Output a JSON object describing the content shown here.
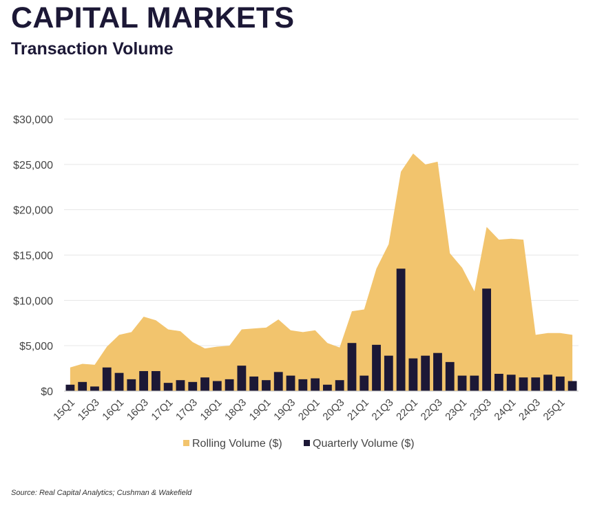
{
  "header": {
    "title": "CAPITAL MARKETS",
    "subtitle": "Transaction Volume"
  },
  "source": "Source: Real Capital Analytics; Cushman & Wakefield",
  "colors": {
    "rolling": "#f2c46d",
    "quarterly": "#1c1836",
    "grid": "#e6e6e6",
    "text": "#1c1836"
  },
  "chart_data": {
    "type": "bar+area",
    "title": "Transaction Volume",
    "xlabel": "",
    "ylabel": "",
    "ylim": [
      0,
      30000
    ],
    "yticks": [
      0,
      5000,
      10000,
      15000,
      20000,
      25000,
      30000
    ],
    "ytick_labels": [
      "$0",
      "$5,000",
      "$10,000",
      "$15,000",
      "$20,000",
      "$25,000",
      "$30,000"
    ],
    "categories": [
      "15Q1",
      "15Q2",
      "15Q3",
      "15Q4",
      "16Q1",
      "16Q2",
      "16Q3",
      "16Q4",
      "17Q1",
      "17Q2",
      "17Q3",
      "17Q4",
      "18Q1",
      "18Q2",
      "18Q3",
      "18Q4",
      "19Q1",
      "19Q2",
      "19Q3",
      "19Q4",
      "20Q1",
      "20Q2",
      "20Q3",
      "20Q4",
      "21Q1",
      "21Q2",
      "21Q3",
      "21Q4",
      "22Q1",
      "22Q2",
      "22Q3",
      "22Q4",
      "23Q1",
      "23Q2",
      "23Q3",
      "23Q4",
      "24Q1",
      "24Q2",
      "24Q3",
      "24Q4",
      "25Q1",
      "25Q2"
    ],
    "x_tick_labels": [
      "15Q1",
      "15Q3",
      "16Q1",
      "16Q3",
      "17Q1",
      "17Q3",
      "18Q1",
      "18Q3",
      "19Q1",
      "19Q3",
      "20Q1",
      "20Q3",
      "21Q1",
      "21Q3",
      "22Q1",
      "22Q3",
      "23Q1",
      "23Q3",
      "24Q1",
      "24Q3",
      "25Q1"
    ],
    "series": [
      {
        "name": "Rolling Volume ($)",
        "kind": "area",
        "values": [
          2600,
          3000,
          2900,
          4900,
          6200,
          6500,
          8200,
          7800,
          6800,
          6600,
          5400,
          4700,
          4900,
          5000,
          6800,
          6900,
          7000,
          7900,
          6700,
          6500,
          6700,
          5300,
          4800,
          8800,
          9000,
          13500,
          16200,
          24200,
          26200,
          25000,
          25300,
          15200,
          13600,
          11000,
          18100,
          16700,
          16800,
          16700,
          6200,
          6400,
          6400,
          6200
        ]
      },
      {
        "name": "Quarterly Volume ($)",
        "kind": "bar",
        "values": [
          700,
          1000,
          500,
          2600,
          2000,
          1300,
          2200,
          2200,
          900,
          1200,
          1000,
          1500,
          1100,
          1300,
          2800,
          1600,
          1200,
          2100,
          1700,
          1300,
          1400,
          700,
          1200,
          5300,
          1700,
          5100,
          3900,
          13500,
          3600,
          3900,
          4200,
          3200,
          1700,
          1700,
          11300,
          1900,
          1800,
          1500,
          1500,
          1800,
          1600,
          1100
        ]
      }
    ],
    "legend": [
      "Rolling Volume ($)",
      "Quarterly Volume ($)"
    ],
    "legend_position": "bottom",
    "grid": true
  }
}
